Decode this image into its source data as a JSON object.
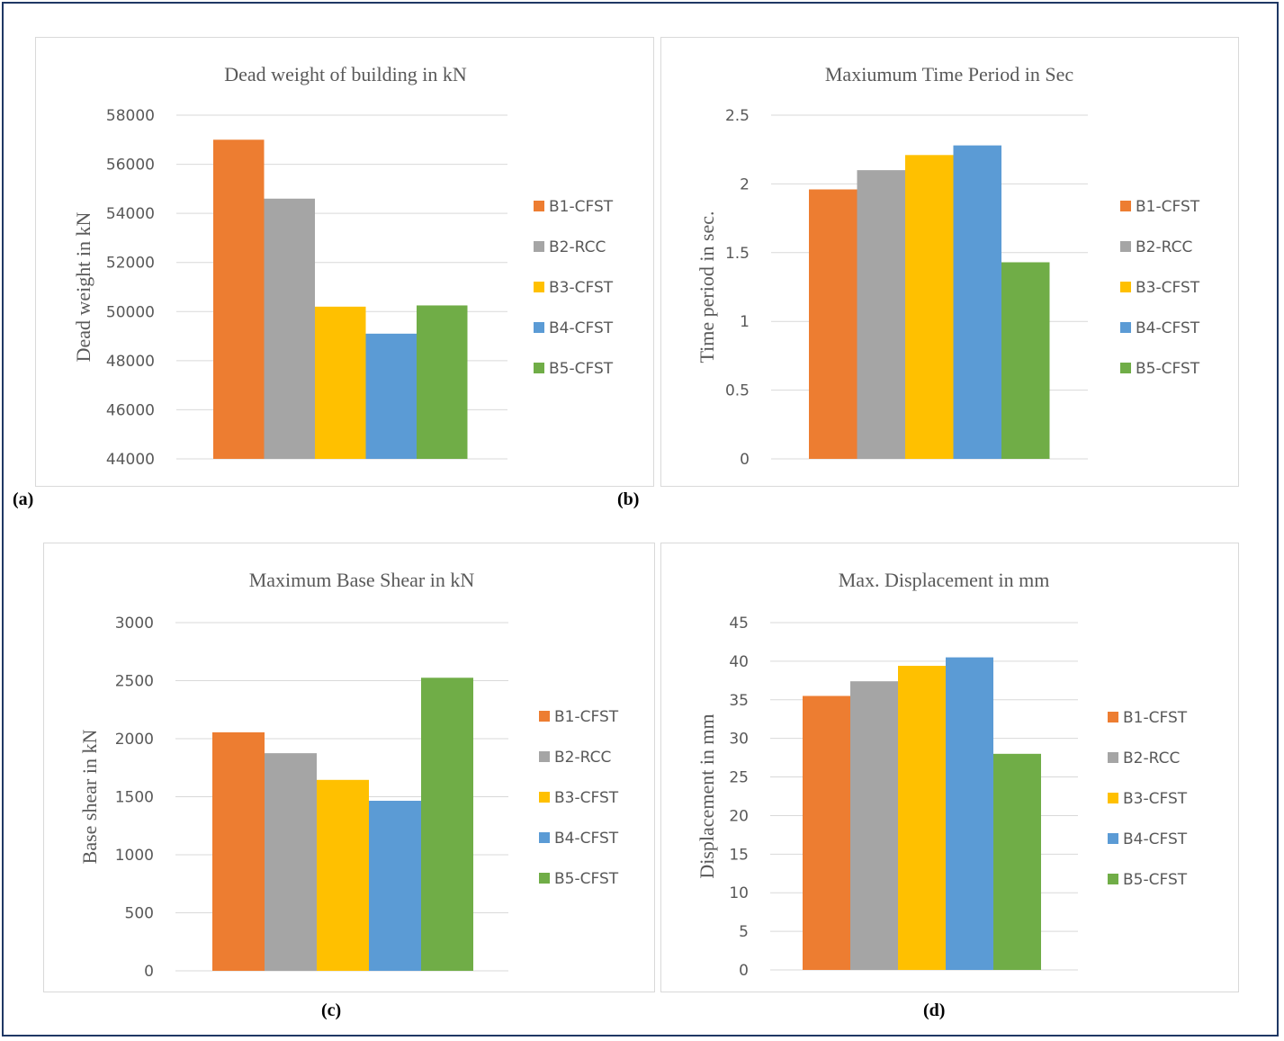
{
  "caption_labels": [
    "(a)",
    "(b)",
    "(c)",
    "(d)"
  ],
  "colors": {
    "B1-CFST": "#ed7d31",
    "B2-RCC": "#a5a5a5",
    "B3-CFST": "#ffc000",
    "B4-CFST": "#5b9bd5",
    "B5-CFST": "#70ad47"
  },
  "chart_data": [
    {
      "type": "bar",
      "title": "Dead weight of building in kN",
      "xlabel": "",
      "ylabel": "Dead weight in kN",
      "categories": [
        "B1-CFST",
        "B2-RCC",
        "B3-CFST",
        "B4-CFST",
        "B5-CFST"
      ],
      "values": [
        57000,
        54600,
        50200,
        49100,
        50250
      ],
      "ylim": [
        44000,
        58000
      ],
      "yticks": [
        "44000",
        "46000",
        "48000",
        "50000",
        "52000",
        "54000",
        "56000",
        "58000"
      ],
      "grid": true,
      "legend": "right"
    },
    {
      "type": "bar",
      "title": "Maxiumum Time Period in Sec",
      "xlabel": "",
      "ylabel": "Time period in sec.",
      "categories": [
        "B1-CFST",
        "B2-RCC",
        "B3-CFST",
        "B4-CFST",
        "B5-CFST"
      ],
      "values": [
        1.96,
        2.1,
        2.21,
        2.28,
        1.43
      ],
      "ylim": [
        0,
        2.5
      ],
      "yticks": [
        "0",
        "0.5",
        "1",
        "1.5",
        "2",
        "2.5"
      ],
      "grid": true,
      "legend": "right"
    },
    {
      "type": "bar",
      "title": "Maximum Base Shear in kN",
      "xlabel": "",
      "ylabel": "Base shear in kN",
      "categories": [
        "B1-CFST",
        "B2-RCC",
        "B3-CFST",
        "B4-CFST",
        "B5-CFST"
      ],
      "values": [
        2055,
        1875,
        1645,
        1465,
        2525
      ],
      "ylim": [
        0,
        3000
      ],
      "yticks": [
        "0",
        "500",
        "1000",
        "1500",
        "2000",
        "2500",
        "3000"
      ],
      "grid": true,
      "legend": "right"
    },
    {
      "type": "bar",
      "title": "Max. Displacement in mm",
      "xlabel": "",
      "ylabel": "Displacement in mm",
      "categories": [
        "B1-CFST",
        "B2-RCC",
        "B3-CFST",
        "B4-CFST",
        "B5-CFST"
      ],
      "values": [
        35.5,
        37.4,
        39.4,
        40.5,
        28.0
      ],
      "ylim": [
        0,
        45
      ],
      "yticks": [
        "0",
        "5",
        "10",
        "15",
        "20",
        "25",
        "30",
        "35",
        "40",
        "45"
      ],
      "grid": true,
      "legend": "right"
    }
  ]
}
